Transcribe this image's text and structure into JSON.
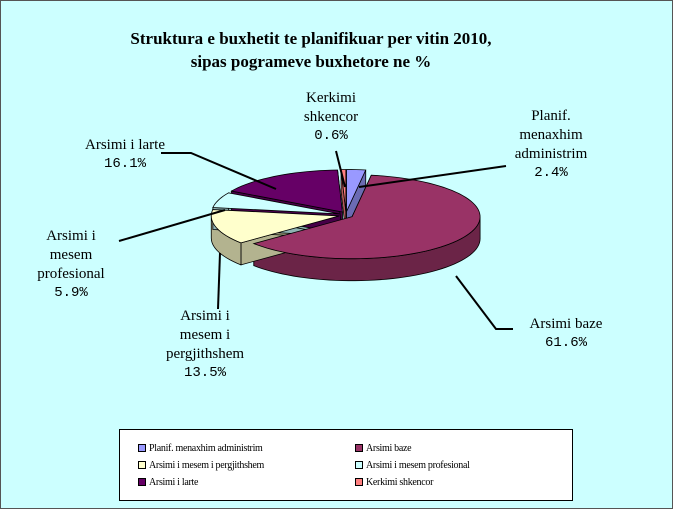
{
  "chart_data": {
    "type": "pie3d",
    "title": "Struktura e buxhetit te planifikuar per vitin 2010,\nsipas pogrameve buxhetore ne %",
    "categories": [
      "Planif. menaxhim administrim",
      "Arsimi baze",
      "Arsimi i mesem i pergjithshem",
      "Arsimi i mesem profesional",
      "Arsimi i larte",
      "Kerkimi shkencor"
    ],
    "values": [
      2.4,
      61.6,
      13.5,
      5.9,
      16.1,
      0.6
    ],
    "value_labels": [
      "2.4%",
      "61.6%",
      "13.5%",
      "5.9%",
      "16.1%",
      "0.6%"
    ],
    "colors": [
      "#9999ff",
      "#993366",
      "#ffffcc",
      "#ccffff",
      "#660066",
      "#ff8080"
    ],
    "legend": "bottom"
  }
}
